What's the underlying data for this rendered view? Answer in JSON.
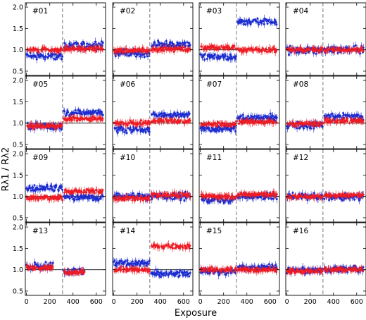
{
  "figure": {
    "xlabel": "Exposure",
    "ylabel": "Rλ1 / Rλ2"
  },
  "colors": {
    "series_a": "#ee1c24",
    "series_b": "#1c2cd0",
    "reference_line": "#000000",
    "split_line": "#555555"
  },
  "chart_data": {
    "type": "scatter",
    "layout": "4x4 grid of panels",
    "xlabel": "Exposure",
    "ylabel": "Rλ1 / Rλ2",
    "xlim": [
      -10,
      680
    ],
    "ylim": [
      0.4,
      2.1
    ],
    "xticks": [
      0,
      200,
      400,
      600
    ],
    "xtick_labels": [
      "0",
      "200",
      "400",
      "600"
    ],
    "yticks": [
      0.5,
      1.0,
      1.5,
      2.0
    ],
    "ytick_labels": [
      "0.5",
      "1.0",
      "1.5",
      "2.0"
    ],
    "reference_y": 1.0,
    "split_exposure": 310,
    "series_colors": [
      "red",
      "blue"
    ],
    "panels": [
      {
        "label": "#01",
        "red": [
          {
            "x": [
              0,
              310
            ],
            "y": 1.0
          },
          {
            "x": [
              320,
              660
            ],
            "y": 1.02
          }
        ],
        "blue": [
          {
            "x": [
              0,
              310
            ],
            "y": 0.85
          },
          {
            "x": [
              320,
              660
            ],
            "y": 1.1
          }
        ]
      },
      {
        "label": "#02",
        "red": [
          {
            "x": [
              0,
              310
            ],
            "y": 0.98
          },
          {
            "x": [
              320,
              660
            ],
            "y": 1.02
          }
        ],
        "blue": [
          {
            "x": [
              0,
              310
            ],
            "y": 0.92
          },
          {
            "x": [
              320,
              660
            ],
            "y": 1.12
          }
        ]
      },
      {
        "label": "#03",
        "red": [
          {
            "x": [
              0,
              310
            ],
            "y": 1.05
          },
          {
            "x": [
              320,
              660
            ],
            "y": 1.0
          }
        ],
        "blue": [
          {
            "x": [
              0,
              310
            ],
            "y": 0.85
          },
          {
            "x": [
              320,
              660
            ],
            "y": 1.65
          }
        ]
      },
      {
        "label": "#04",
        "red": [
          {
            "x": [
              0,
              310
            ],
            "y": 1.0
          },
          {
            "x": [
              320,
              660
            ],
            "y": 1.0
          }
        ],
        "blue": [
          {
            "x": [
              0,
              310
            ],
            "y": 0.98
          },
          {
            "x": [
              320,
              660
            ],
            "y": 1.0
          }
        ]
      },
      {
        "label": "#05",
        "red": [
          {
            "x": [
              0,
              310
            ],
            "y": 0.93
          },
          {
            "x": [
              320,
              660
            ],
            "y": 1.1
          }
        ],
        "blue": [
          {
            "x": [
              0,
              310
            ],
            "y": 0.92
          },
          {
            "x": [
              320,
              660
            ],
            "y": 1.25
          }
        ]
      },
      {
        "label": "#06",
        "red": [
          {
            "x": [
              0,
              310
            ],
            "y": 1.0
          },
          {
            "x": [
              320,
              660
            ],
            "y": 1.05
          }
        ],
        "blue": [
          {
            "x": [
              0,
              310
            ],
            "y": 0.85
          },
          {
            "x": [
              320,
              660
            ],
            "y": 1.2
          }
        ]
      },
      {
        "label": "#07",
        "red": [
          {
            "x": [
              0,
              310
            ],
            "y": 0.97
          },
          {
            "x": [
              320,
              660
            ],
            "y": 1.03
          }
        ],
        "blue": [
          {
            "x": [
              0,
              310
            ],
            "y": 0.88
          },
          {
            "x": [
              320,
              660
            ],
            "y": 1.12
          }
        ]
      },
      {
        "label": "#08",
        "red": [
          {
            "x": [
              0,
              310
            ],
            "y": 0.98
          },
          {
            "x": [
              320,
              660
            ],
            "y": 1.05
          }
        ],
        "blue": [
          {
            "x": [
              0,
              310
            ],
            "y": 0.95
          },
          {
            "x": [
              320,
              660
            ],
            "y": 1.15
          }
        ]
      },
      {
        "label": "#09",
        "red": [
          {
            "x": [
              0,
              310
            ],
            "y": 0.97
          },
          {
            "x": [
              320,
              660
            ],
            "y": 1.12
          }
        ],
        "blue": [
          {
            "x": [
              0,
              310
            ],
            "y": 1.2
          },
          {
            "x": [
              320,
              660
            ],
            "y": 0.98
          }
        ]
      },
      {
        "label": "#10",
        "red": [
          {
            "x": [
              0,
              310
            ],
            "y": 0.95
          },
          {
            "x": [
              320,
              660
            ],
            "y": 1.03
          }
        ],
        "blue": [
          {
            "x": [
              0,
              310
            ],
            "y": 1.0
          },
          {
            "x": [
              320,
              660
            ],
            "y": 1.0
          }
        ]
      },
      {
        "label": "#11",
        "red": [
          {
            "x": [
              0,
              310
            ],
            "y": 1.0
          },
          {
            "x": [
              320,
              660
            ],
            "y": 1.05
          }
        ],
        "blue": [
          {
            "x": [
              0,
              310
            ],
            "y": 0.92
          },
          {
            "x": [
              320,
              660
            ],
            "y": 1.0
          }
        ]
      },
      {
        "label": "#12",
        "red": [
          {
            "x": [
              0,
              310
            ],
            "y": 1.0
          },
          {
            "x": [
              320,
              660
            ],
            "y": 1.03
          }
        ],
        "blue": [
          {
            "x": [
              0,
              310
            ],
            "y": 1.0
          },
          {
            "x": [
              320,
              660
            ],
            "y": 0.98
          }
        ]
      },
      {
        "label": "#13",
        "red": [
          {
            "x": [
              0,
              230
            ],
            "y": 1.05
          },
          {
            "x": [
              320,
              500
            ],
            "y": 0.95
          }
        ],
        "blue": [
          {
            "x": [
              0,
              230
            ],
            "y": 1.08
          },
          {
            "x": [
              320,
              500
            ],
            "y": 0.95
          }
        ]
      },
      {
        "label": "#14",
        "red": [
          {
            "x": [
              0,
              310
            ],
            "y": 1.0
          },
          {
            "x": [
              320,
              660
            ],
            "y": 1.55
          }
        ],
        "blue": [
          {
            "x": [
              0,
              310
            ],
            "y": 1.15
          },
          {
            "x": [
              320,
              660
            ],
            "y": 0.9
          }
        ]
      },
      {
        "label": "#15",
        "red": [
          {
            "x": [
              0,
              310
            ],
            "y": 1.0
          },
          {
            "x": [
              320,
              660
            ],
            "y": 1.0
          }
        ],
        "blue": [
          {
            "x": [
              0,
              310
            ],
            "y": 0.95
          },
          {
            "x": [
              320,
              660
            ],
            "y": 1.05
          }
        ]
      },
      {
        "label": "#16",
        "red": [
          {
            "x": [
              0,
              310
            ],
            "y": 0.97
          },
          {
            "x": [
              320,
              660
            ],
            "y": 1.0
          }
        ],
        "blue": [
          {
            "x": [
              0,
              310
            ],
            "y": 0.98
          },
          {
            "x": [
              320,
              660
            ],
            "y": 1.02
          }
        ]
      }
    ]
  }
}
